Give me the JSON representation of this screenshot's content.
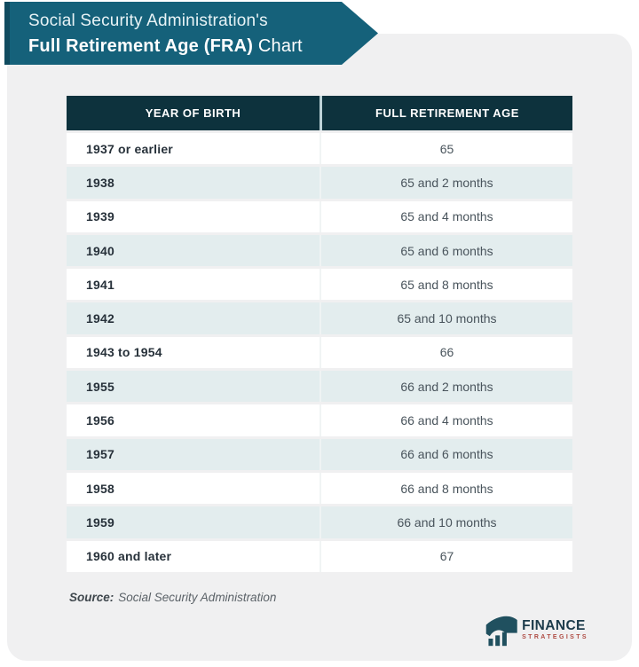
{
  "banner": {
    "line1": "Social Security Administration's",
    "line2_bold": "Full Retirement Age (FRA)",
    "line2_regular": " Chart"
  },
  "table": {
    "columns": [
      "YEAR OF BIRTH",
      "FULL RETIREMENT AGE"
    ],
    "rows": [
      {
        "year": "1937 or earlier",
        "age": "65"
      },
      {
        "year": "1938",
        "age": "65 and 2 months"
      },
      {
        "year": "1939",
        "age": "65 and 4 months"
      },
      {
        "year": "1940",
        "age": "65 and 6 months"
      },
      {
        "year": "1941",
        "age": "65 and 8 months"
      },
      {
        "year": "1942",
        "age": "65 and 10 months"
      },
      {
        "year": "1943 to 1954",
        "age": "66"
      },
      {
        "year": "1955",
        "age": "66 and 2 months"
      },
      {
        "year": "1956",
        "age": "66 and 4 months"
      },
      {
        "year": "1957",
        "age": "66 and 6 months"
      },
      {
        "year": "1958",
        "age": "66 and 8 months"
      },
      {
        "year": "1959",
        "age": "66 and 10 months"
      },
      {
        "year": "1960 and later",
        "age": "67"
      }
    ]
  },
  "source": {
    "label": "Source:",
    "text": "Social Security Administration"
  },
  "logo": {
    "name": "FINANCE",
    "subtitle": "STRATEGISTS"
  },
  "colors": {
    "banner_teal": "#15617A",
    "header_dark": "#0D323D",
    "row_alt": "#E3EDEE",
    "card_gray": "#F0F0F1",
    "logo_red": "#AF4B43",
    "logo_navy": "#1C3B4B"
  },
  "chart_data": {
    "type": "table",
    "title": "Social Security Administration's Full Retirement Age (FRA) Chart",
    "columns": [
      "Year of Birth",
      "Full Retirement Age"
    ],
    "rows": [
      [
        "1937 or earlier",
        "65"
      ],
      [
        "1938",
        "65 and 2 months"
      ],
      [
        "1939",
        "65 and 4 months"
      ],
      [
        "1940",
        "65 and 6 months"
      ],
      [
        "1941",
        "65 and 8 months"
      ],
      [
        "1942",
        "65 and 10 months"
      ],
      [
        "1943 to 1954",
        "66"
      ],
      [
        "1955",
        "66 and 2 months"
      ],
      [
        "1956",
        "66 and 4 months"
      ],
      [
        "1957",
        "66 and 6 months"
      ],
      [
        "1958",
        "66 and 8 months"
      ],
      [
        "1959",
        "66 and 10 months"
      ],
      [
        "1960 and later",
        "67"
      ]
    ],
    "source": "Social Security Administration"
  }
}
